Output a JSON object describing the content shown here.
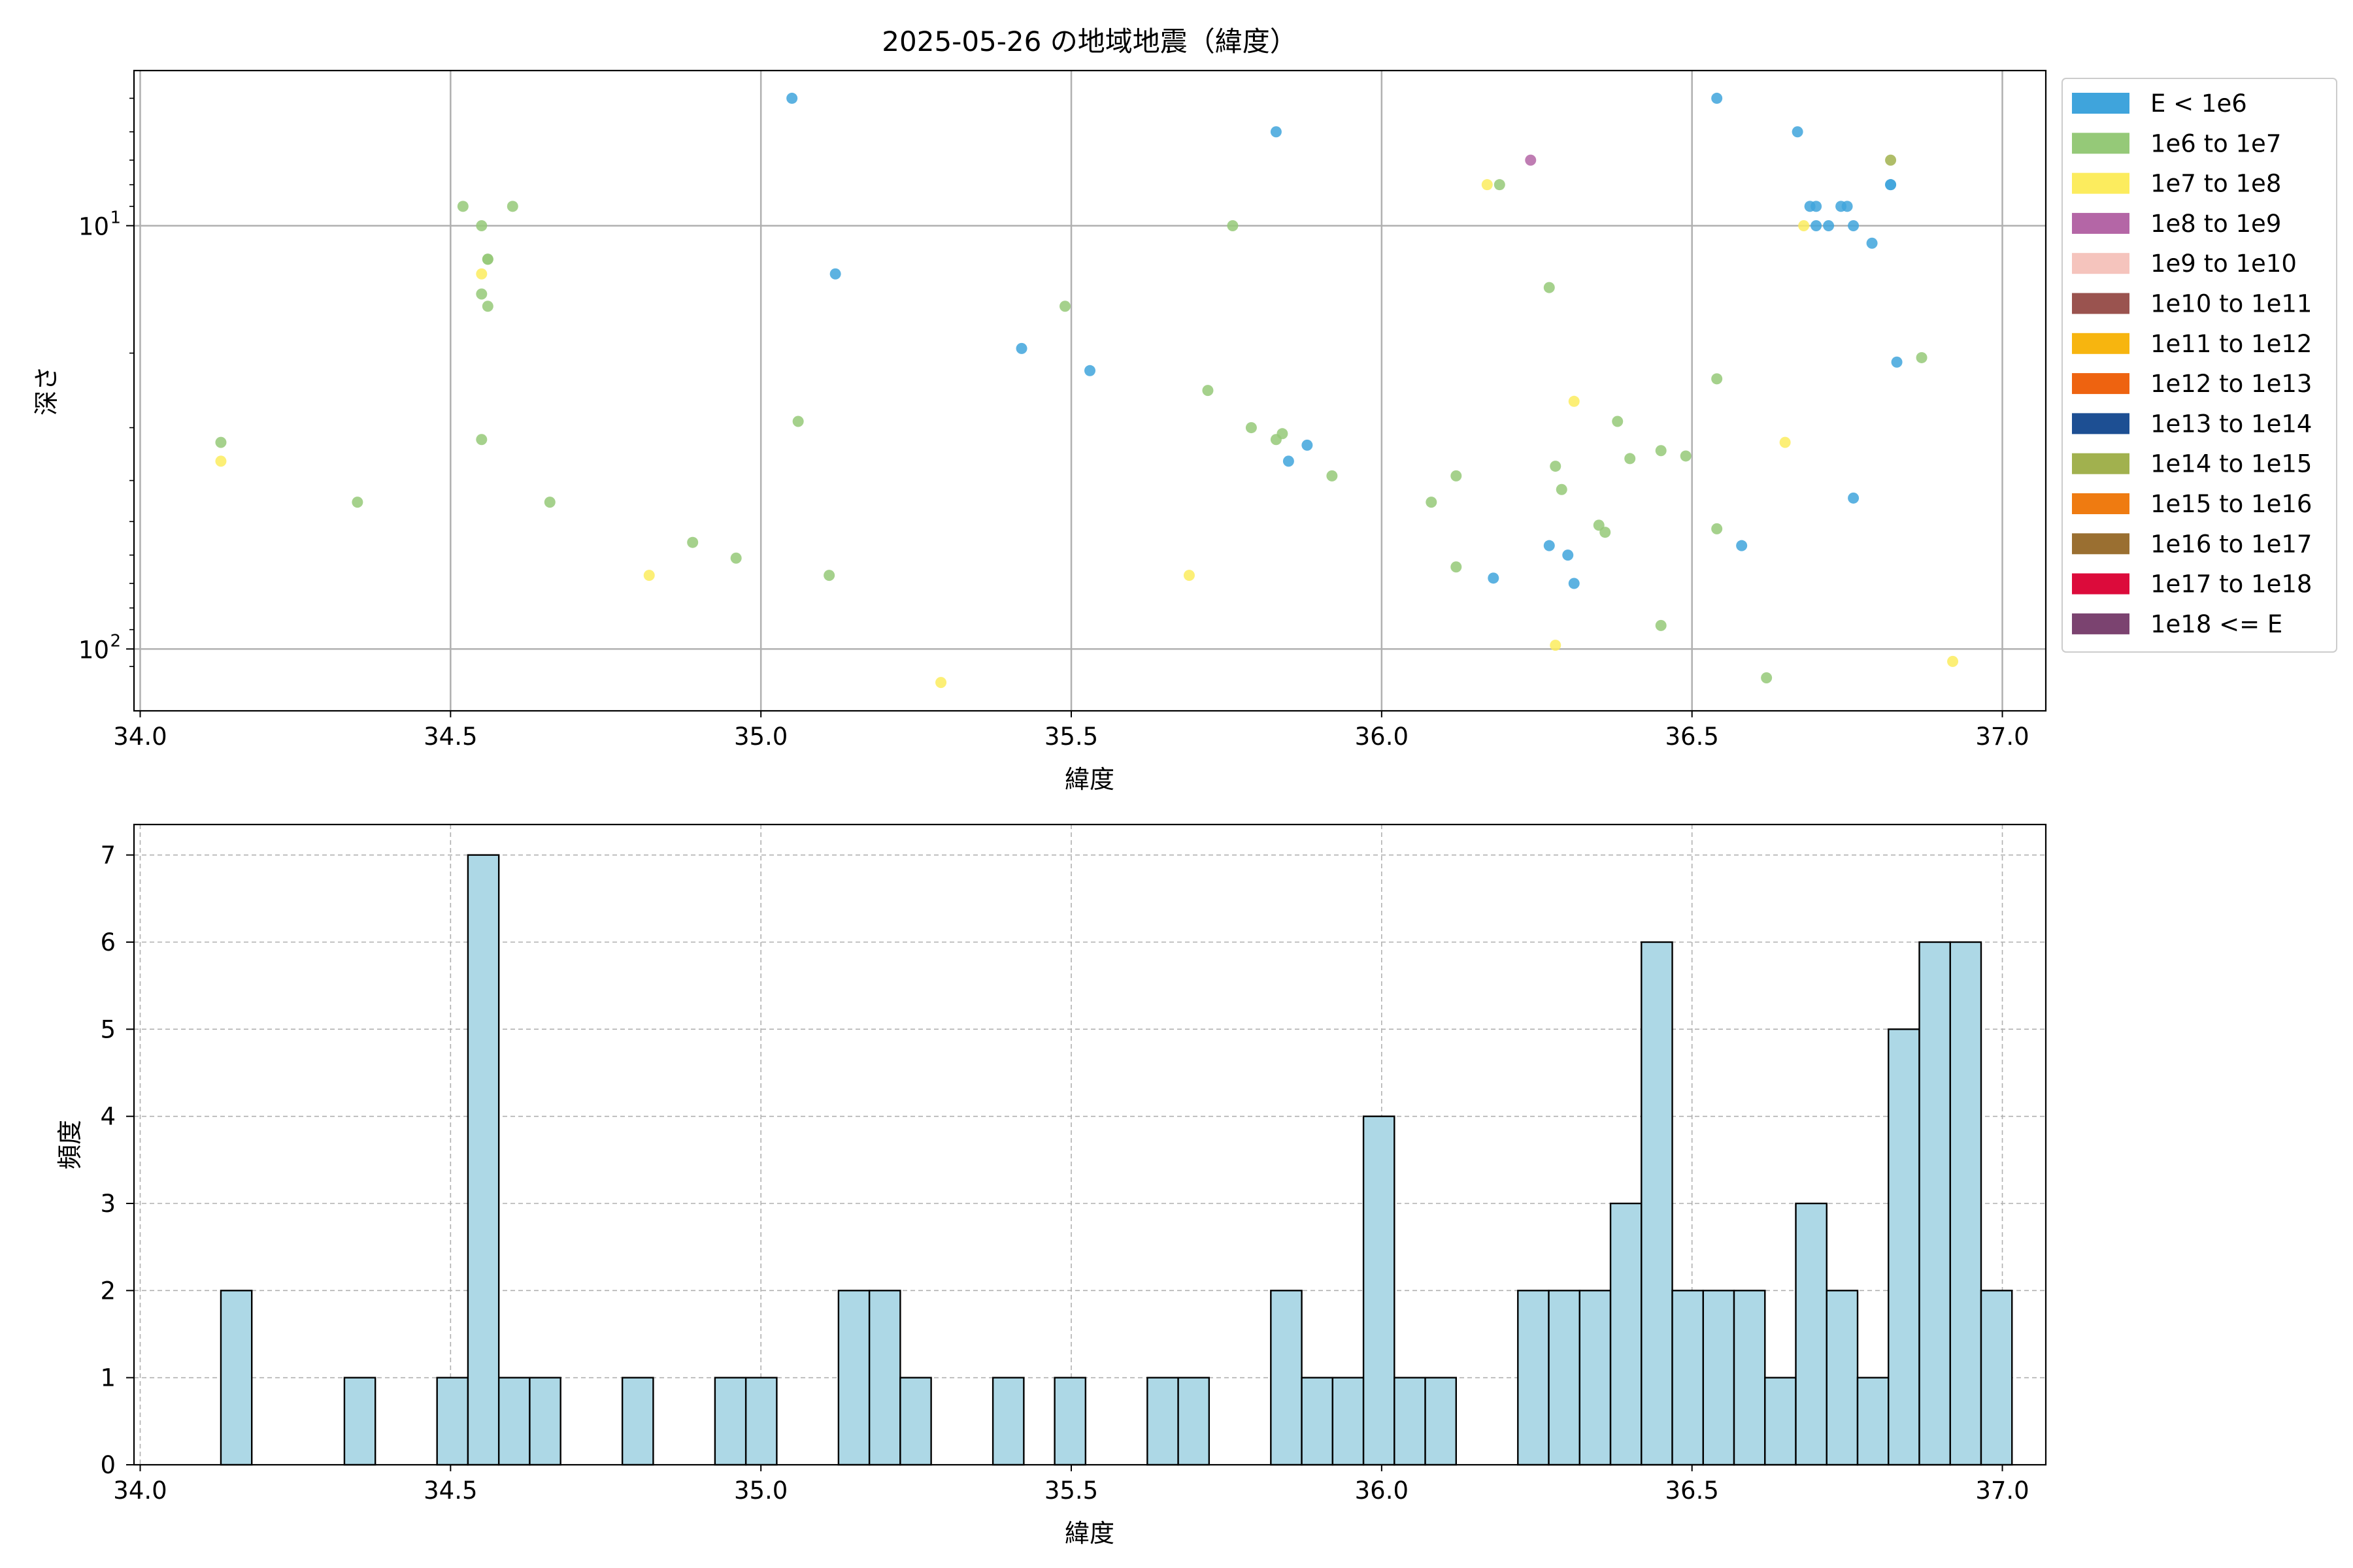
{
  "colors": {
    "E < 1e6": "#3fa4dc",
    "1e6 to 1e7": "#95c978",
    "1e7 to 1e8": "#fcec5e",
    "1e8 to 1e9": "#b466a6",
    "1e9 to 1e10": "#f5c4bd",
    "1e10 to 1e11": "#9a534f",
    "1e11 to 1e12": "#f7b50f",
    "1e12 to 1e13": "#ee6310",
    "1e13 to 1e14": "#1d4f93",
    "1e14 to 1e15": "#a1b14e",
    "1e15 to 1e16": "#ef7b11",
    "1e16 to 1e17": "#9a6f31",
    "1e17 to 1e18": "#dc0b3b",
    "1e18 <= E": "#7b4370",
    "histogram_fill": "#add8e6",
    "histogram_edge": "#000000",
    "grid": "#b0b0b0"
  },
  "chart_data": [
    {
      "type": "scatter",
      "title": "2025-05-26 の地域地震（緯度）",
      "xlabel": "緯度",
      "ylabel": "深さ",
      "xlim": [
        33.99,
        37.07
      ],
      "ylim_log": [
        140,
        4.3
      ],
      "y_scale": "log (inverted)",
      "xticks": [
        34.0,
        34.5,
        35.0,
        35.5,
        36.0,
        36.5,
        37.0
      ],
      "xtick_labels": [
        "34.0",
        "34.5",
        "35.0",
        "35.5",
        "36.0",
        "36.5",
        "37.0"
      ],
      "yticks_major": [
        {
          "value": 10,
          "base": "10",
          "exp": "1"
        },
        {
          "value": 100,
          "base": "10",
          "exp": "2"
        }
      ],
      "grid": true,
      "legend_position": "outside-right",
      "legend": [
        "E < 1e6",
        "1e6 to 1e7",
        "1e7 to 1e8",
        "1e8 to 1e9",
        "1e9 to 1e10",
        "1e10 to 1e11",
        "1e11 to 1e12",
        "1e12 to 1e13",
        "1e13 to 1e14",
        "1e14 to 1e15",
        "1e15 to 1e16",
        "1e16 to 1e17",
        "1e17 to 1e18",
        "1e18 <= E"
      ],
      "series": [
        {
          "name": "E < 1e6",
          "points": [
            [
              35.05,
              5.0
            ],
            [
              35.12,
              13.0
            ],
            [
              35.42,
              19.5
            ],
            [
              35.53,
              22.0
            ],
            [
              35.83,
              6.0
            ],
            [
              35.85,
              36.0
            ],
            [
              35.88,
              33.0
            ],
            [
              36.18,
              68.0
            ],
            [
              36.27,
              57.0
            ],
            [
              36.3,
              60.0
            ],
            [
              36.31,
              70.0
            ],
            [
              36.54,
              5.0
            ],
            [
              36.58,
              57.0
            ],
            [
              36.67,
              6.0
            ],
            [
              36.69,
              9.0
            ],
            [
              36.7,
              10.0
            ],
            [
              36.7,
              9.0
            ],
            [
              36.72,
              10.0
            ],
            [
              36.74,
              9.0
            ],
            [
              36.75,
              9.0
            ],
            [
              36.76,
              10.0
            ],
            [
              36.76,
              44.0
            ],
            [
              36.79,
              11.0
            ],
            [
              36.82,
              8.0
            ],
            [
              36.82,
              8.0
            ],
            [
              36.83,
              21.0
            ]
          ]
        },
        {
          "name": "1e6 to 1e7",
          "points": [
            [
              34.13,
              32.5
            ],
            [
              34.35,
              45.0
            ],
            [
              34.52,
              9.0
            ],
            [
              34.55,
              10.0
            ],
            [
              34.55,
              32.0
            ],
            [
              34.55,
              14.5
            ],
            [
              34.56,
              12.0
            ],
            [
              34.56,
              12.0
            ],
            [
              34.56,
              15.5
            ],
            [
              34.6,
              9.0
            ],
            [
              34.66,
              45.0
            ],
            [
              34.89,
              56.0
            ],
            [
              34.96,
              61.0
            ],
            [
              35.06,
              29.0
            ],
            [
              35.11,
              67.0
            ],
            [
              35.49,
              15.5
            ],
            [
              35.72,
              24.5
            ],
            [
              35.76,
              10.0
            ],
            [
              35.79,
              30.0
            ],
            [
              35.83,
              32.0
            ],
            [
              35.84,
              31.0
            ],
            [
              35.92,
              39.0
            ],
            [
              36.08,
              45.0
            ],
            [
              36.12,
              39.0
            ],
            [
              36.12,
              64.0
            ],
            [
              36.19,
              8.0
            ],
            [
              36.27,
              14.0
            ],
            [
              36.28,
              37.0
            ],
            [
              36.29,
              42.0
            ],
            [
              36.35,
              51.0
            ],
            [
              36.36,
              53.0
            ],
            [
              36.38,
              29.0
            ],
            [
              36.4,
              35.5
            ],
            [
              36.45,
              34.0
            ],
            [
              36.45,
              88.0
            ],
            [
              36.49,
              35.0
            ],
            [
              36.54,
              23.0
            ],
            [
              36.54,
              52.0
            ],
            [
              36.62,
              117.0
            ],
            [
              36.87,
              20.5
            ]
          ]
        },
        {
          "name": "1e7 to 1e8",
          "points": [
            [
              34.13,
              36.0
            ],
            [
              34.55,
              13.0
            ],
            [
              34.82,
              67.0
            ],
            [
              35.29,
              120.0
            ],
            [
              35.69,
              67.0
            ],
            [
              36.17,
              8.0
            ],
            [
              36.28,
              98.0
            ],
            [
              36.31,
              26.0
            ],
            [
              36.65,
              32.5
            ],
            [
              36.68,
              10.0
            ],
            [
              36.92,
              107.0
            ]
          ]
        },
        {
          "name": "1e8 to 1e9",
          "points": [
            [
              36.24,
              7.0
            ]
          ]
        },
        {
          "name": "1e14 to 1e15",
          "points": [
            [
              36.82,
              7.0
            ]
          ]
        }
      ]
    },
    {
      "type": "bar",
      "subtype": "histogram",
      "title": "",
      "xlabel": "緯度",
      "ylabel": "頻度",
      "xlim": [
        33.99,
        37.07
      ],
      "ylim": [
        0,
        7.35
      ],
      "xticks": [
        34.0,
        34.5,
        35.0,
        35.5,
        36.0,
        36.5,
        37.0
      ],
      "xtick_labels": [
        "34.0",
        "34.5",
        "35.0",
        "35.5",
        "36.0",
        "36.5",
        "37.0"
      ],
      "yticks": [
        0,
        1,
        2,
        3,
        4,
        5,
        6,
        7
      ],
      "ytick_labels": [
        "0",
        "1",
        "2",
        "3",
        "4",
        "5",
        "6",
        "7"
      ],
      "grid": true,
      "bin_start": 34.13,
      "bin_width": 0.04975,
      "values": [
        2,
        0,
        0,
        0,
        1,
        0,
        0,
        1,
        7,
        1,
        1,
        0,
        0,
        1,
        0,
        0,
        1,
        1,
        0,
        0,
        2,
        2,
        1,
        0,
        0,
        1,
        0,
        1,
        0,
        0,
        1,
        1,
        0,
        0,
        2,
        1,
        1,
        4,
        1,
        1,
        0,
        0,
        2,
        2,
        2,
        3,
        6,
        2,
        2,
        2,
        1,
        3,
        2,
        1,
        5,
        6,
        6,
        2,
        0
      ]
    }
  ]
}
